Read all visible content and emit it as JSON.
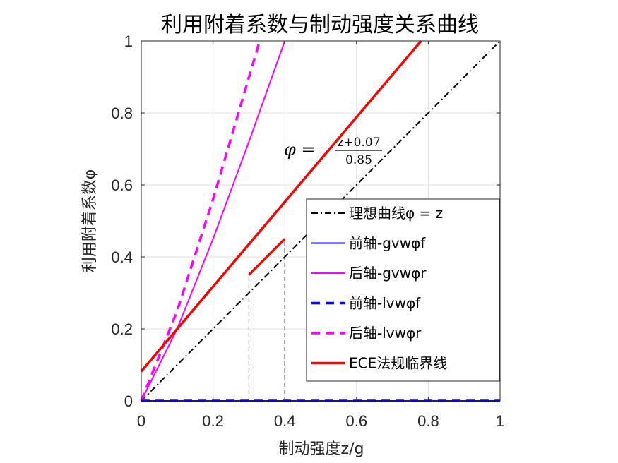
{
  "chart_data": {
    "type": "line",
    "title": "利用附着系数与制动强度关系曲线",
    "xlabel": "制动强度z/g",
    "ylabel": "利用附着系数φ",
    "xlim": [
      0,
      1
    ],
    "ylim": [
      0,
      1
    ],
    "xticks": [
      "0",
      "0.2",
      "0.4",
      "0.6",
      "0.8",
      "1"
    ],
    "yticks": [
      "0",
      "0.2",
      "0.4",
      "0.6",
      "0.8",
      "1"
    ],
    "grid": true,
    "legend_position": "lower-right",
    "annotation": {
      "lhs": "φ =",
      "numerator": "z+0.07",
      "denominator": "0.85",
      "x": 0.4,
      "y": 0.7
    },
    "series": [
      {
        "name": "理想曲线φ = z",
        "color": "#000000",
        "style": "dashdot",
        "x": [
          0,
          1
        ],
        "y": [
          0,
          1
        ]
      },
      {
        "name": "前轴-gvwφf",
        "color": "#0000ff",
        "style": "solid",
        "x": [
          0,
          1
        ],
        "y": [
          0,
          0
        ]
      },
      {
        "name": "后轴-gvwφr",
        "color": "#ff00ff",
        "style": "solid",
        "x": [
          0,
          0.1,
          0.2,
          0.3,
          0.4
        ],
        "y": [
          0,
          0.2,
          0.45,
          0.72,
          1.0
        ]
      },
      {
        "name": "前轴-lvwφf",
        "color": "#0000ff",
        "style": "dashed",
        "x": [
          0,
          1
        ],
        "y": [
          0,
          0
        ]
      },
      {
        "name": "后轴-lvwφr",
        "color": "#ff00ff",
        "style": "dashed",
        "x": [
          0,
          0.1,
          0.2,
          0.33
        ],
        "y": [
          0,
          0.25,
          0.56,
          1.0
        ]
      },
      {
        "name": "ECE法规临界线",
        "color": "#ff0000",
        "style": "thick",
        "x": [
          0,
          0.78
        ],
        "y": [
          0.082,
          1.0
        ]
      },
      {
        "name": "",
        "color": "#ff0000",
        "style": "thick",
        "legend": false,
        "x": [
          0.3,
          0.4
        ],
        "y": [
          0.35,
          0.45
        ]
      }
    ],
    "guide_lines": [
      {
        "x": 0.3,
        "y0": 0,
        "y1": 0.35
      },
      {
        "x": 0.4,
        "y0": 0,
        "y1": 0.45
      }
    ]
  }
}
